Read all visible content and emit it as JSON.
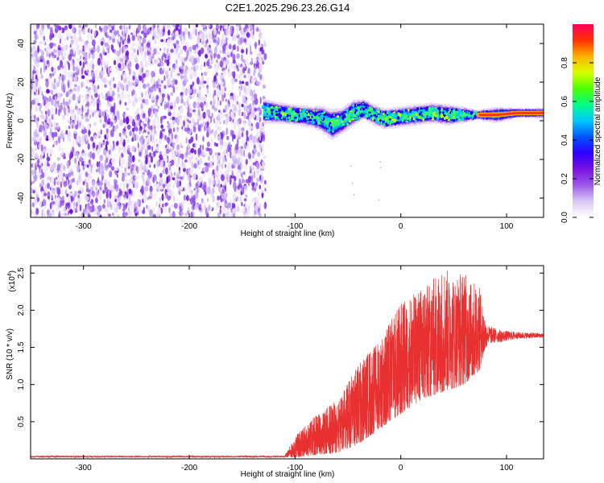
{
  "title": "C2E1.2025.296.23.26.G14",
  "chart_data": [
    {
      "type": "heatmap",
      "title": "C2E1.2025.296.23.26.G14",
      "xlabel": "Height of straight line (km)",
      "ylabel": "Frequency (Hz)",
      "xlim": [
        -350,
        135
      ],
      "ylim": [
        -50,
        50
      ],
      "xticks": [
        -300,
        -200,
        -100,
        0,
        100
      ],
      "xtick_labels": [
        "-300",
        "-200",
        "-100",
        "0",
        "100"
      ],
      "yticks": [
        -40,
        -20,
        0,
        20,
        40
      ],
      "ytick_labels": [
        "-40",
        "-20",
        "0",
        "20",
        "40"
      ],
      "noise_region_x": [
        -350,
        -128
      ],
      "signal_band": {
        "x": [
          -130,
          -115,
          -100,
          -85,
          -75,
          -65,
          -55,
          -45,
          -35,
          -25,
          -15,
          0,
          15,
          30,
          45,
          60,
          72,
          90,
          110,
          135
        ],
        "center_hz": [
          5,
          4,
          3,
          2,
          1,
          -2,
          0,
          4,
          6,
          3,
          1,
          2,
          3,
          4,
          3,
          3,
          3,
          3,
          4,
          4
        ],
        "halfwidth_hz": [
          5,
          4,
          4,
          4,
          5,
          6,
          5,
          5,
          4,
          4,
          4,
          4,
          4,
          4,
          4,
          3,
          2,
          3,
          2,
          2
        ]
      },
      "colorbar": {
        "label": "Normalized spectral amplitude",
        "range": [
          0,
          1
        ],
        "ticks": [
          0.0,
          0.2,
          0.4,
          0.6,
          0.8
        ],
        "tick_labels": [
          "0.0",
          "0.2",
          "0.4",
          "0.6",
          "0.8"
        ],
        "colors": [
          "#ffffff",
          "#d9c7f5",
          "#9b59e8",
          "#7a12e0",
          "#2b00ff",
          "#0055ff",
          "#00c8ff",
          "#00ff88",
          "#4cff00",
          "#d8ff00",
          "#ffb000",
          "#ff3000",
          "#ff0060"
        ]
      }
    },
    {
      "type": "line",
      "xlabel": "Height of straight line (km)",
      "ylabel": "SNR (10 * v/v)",
      "scale_label": "(x10",
      "scale_exponent": "4",
      "xlim": [
        -350,
        135
      ],
      "ylim": [
        0,
        2.6
      ],
      "xticks": [
        -300,
        -200,
        -100,
        0,
        100
      ],
      "xtick_labels": [
        "-300",
        "-200",
        "-100",
        "0",
        "100"
      ],
      "yticks": [
        0.5,
        1.0,
        1.5,
        2.0,
        2.5
      ],
      "ytick_labels": [
        "0.5",
        "1.0",
        "1.5",
        "2.0",
        "2.5"
      ],
      "series": [
        {
          "name": "SNR",
          "color": "#e83030",
          "envelope_x": [
            -350,
            -110,
            -100,
            -80,
            -60,
            -40,
            -20,
            0,
            20,
            40,
            60,
            75,
            80,
            95,
            110,
            135
          ],
          "envelope_min": [
            0.02,
            0.02,
            0.02,
            0.05,
            0.08,
            0.2,
            0.4,
            0.6,
            0.8,
            0.9,
            1.0,
            1.2,
            1.5,
            1.55,
            1.6,
            1.62
          ],
          "envelope_max": [
            0.04,
            0.04,
            0.3,
            0.6,
            0.8,
            1.3,
            1.6,
            2.1,
            2.3,
            2.55,
            2.5,
            2.3,
            1.85,
            1.75,
            1.72,
            1.7
          ]
        }
      ]
    }
  ]
}
